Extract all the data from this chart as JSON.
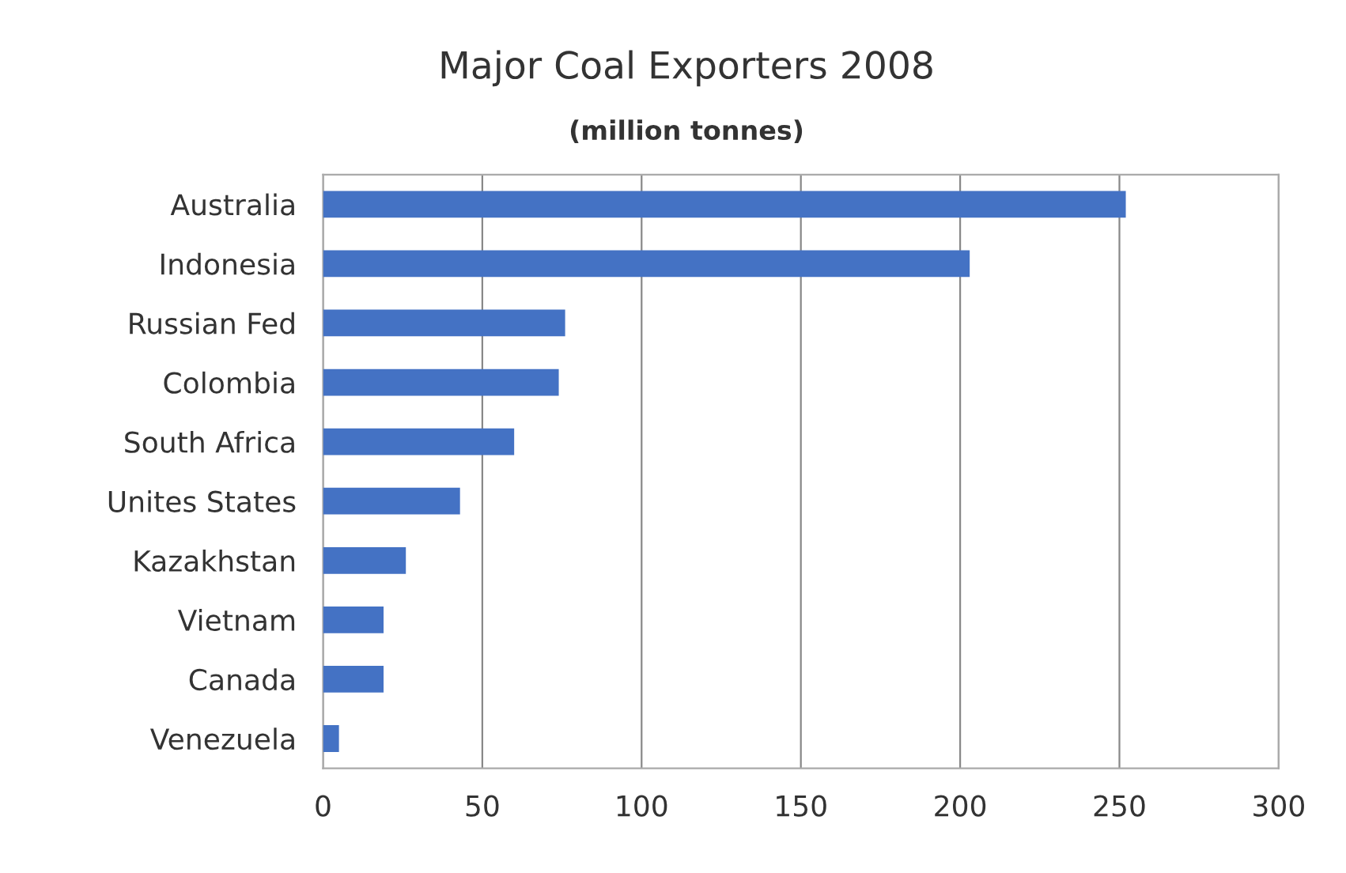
{
  "chart_data": {
    "type": "bar",
    "orientation": "horizontal",
    "title": "Major Coal Exporters 2008",
    "subtitle": "(million tonnes)",
    "categories": [
      "Australia",
      "Indonesia",
      "Russian Fed",
      "Colombia",
      "South Africa",
      "Unites States",
      "Kazakhstan",
      "Vietnam",
      "Canada",
      "Venezuela"
    ],
    "values": [
      252,
      203,
      76,
      74,
      60,
      43,
      26,
      19,
      19,
      5
    ],
    "color": "#4472c4",
    "xlim": [
      0,
      300
    ],
    "xticks": [
      0,
      50,
      100,
      150,
      200,
      250,
      300
    ],
    "grid": "x"
  }
}
